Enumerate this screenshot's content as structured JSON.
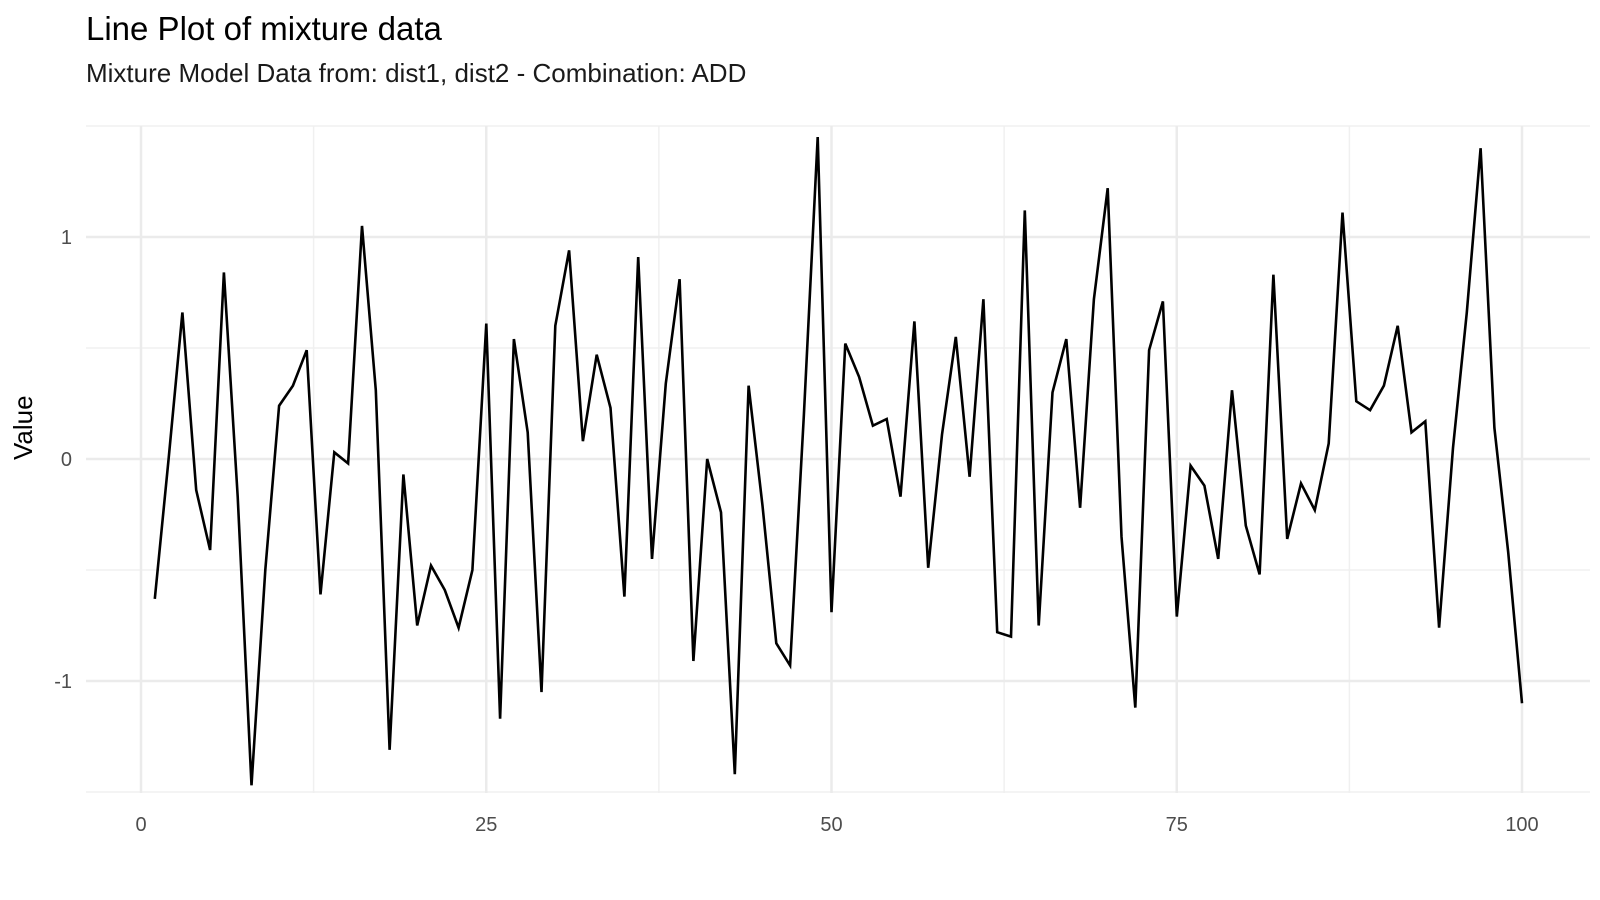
{
  "title": "Line Plot of mixture data",
  "subtitle": "Mixture Model Data from: dist1, dist2 - Combination: ADD",
  "ylabel": "Value",
  "xlabel": "",
  "chart_data": {
    "type": "line",
    "title": "Line Plot of mixture data",
    "subtitle": "Mixture Model Data from: dist1, dist2 - Combination: ADD",
    "xlabel": "",
    "ylabel": "Value",
    "xlim": [
      0,
      100
    ],
    "ylim": [
      -1.5,
      1.5
    ],
    "x_ticks": [
      0,
      25,
      50,
      75,
      100
    ],
    "y_ticks": [
      -1,
      0,
      1
    ],
    "grid": true,
    "line_color": "#000000",
    "x": [
      1,
      2,
      3,
      4,
      5,
      6,
      7,
      8,
      9,
      10,
      11,
      12,
      13,
      14,
      15,
      16,
      17,
      18,
      19,
      20,
      21,
      22,
      23,
      24,
      25,
      26,
      27,
      28,
      29,
      30,
      31,
      32,
      33,
      34,
      35,
      36,
      37,
      38,
      39,
      40,
      41,
      42,
      43,
      44,
      45,
      46,
      47,
      48,
      49,
      50,
      51,
      52,
      53,
      54,
      55,
      56,
      57,
      58,
      59,
      60,
      61,
      62,
      63,
      64,
      65,
      66,
      67,
      68,
      69,
      70,
      71,
      72,
      73,
      74,
      75,
      76,
      77,
      78,
      79,
      80,
      81,
      82,
      83,
      84,
      85,
      86,
      87,
      88,
      89,
      90,
      91,
      92,
      93,
      94,
      95,
      96,
      97,
      98,
      99,
      100
    ],
    "values": [
      -0.63,
      0.0,
      0.66,
      -0.14,
      -0.41,
      0.84,
      -0.17,
      -1.47,
      -0.5,
      0.24,
      0.33,
      0.49,
      -0.61,
      0.03,
      -0.02,
      1.05,
      0.31,
      -1.31,
      -0.07,
      -0.75,
      -0.48,
      -0.59,
      -0.76,
      -0.5,
      0.61,
      -1.17,
      0.54,
      0.12,
      -1.05,
      0.6,
      0.94,
      0.08,
      0.47,
      0.23,
      -0.62,
      0.91,
      -0.45,
      0.34,
      0.81,
      -0.91,
      0.0,
      -0.24,
      -1.42,
      0.33,
      -0.21,
      -0.83,
      -0.93,
      0.2,
      1.45,
      -0.69,
      0.52,
      0.37,
      0.15,
      0.18,
      -0.17,
      0.62,
      -0.49,
      0.11,
      0.55,
      -0.08,
      0.72,
      -0.78,
      -0.8,
      1.12,
      -0.75,
      0.3,
      0.54,
      -0.22,
      0.72,
      1.22,
      -0.35,
      -1.12,
      0.49,
      0.71,
      -0.71,
      -0.03,
      -0.12,
      -0.45,
      0.31,
      -0.3,
      -0.52,
      0.83,
      -0.36,
      -0.11,
      -0.23,
      0.07,
      1.11,
      0.26,
      0.22,
      0.33,
      0.6,
      0.12,
      0.17,
      -0.76,
      0.05,
      0.66,
      1.4,
      0.14,
      -0.42,
      -1.1
    ]
  }
}
